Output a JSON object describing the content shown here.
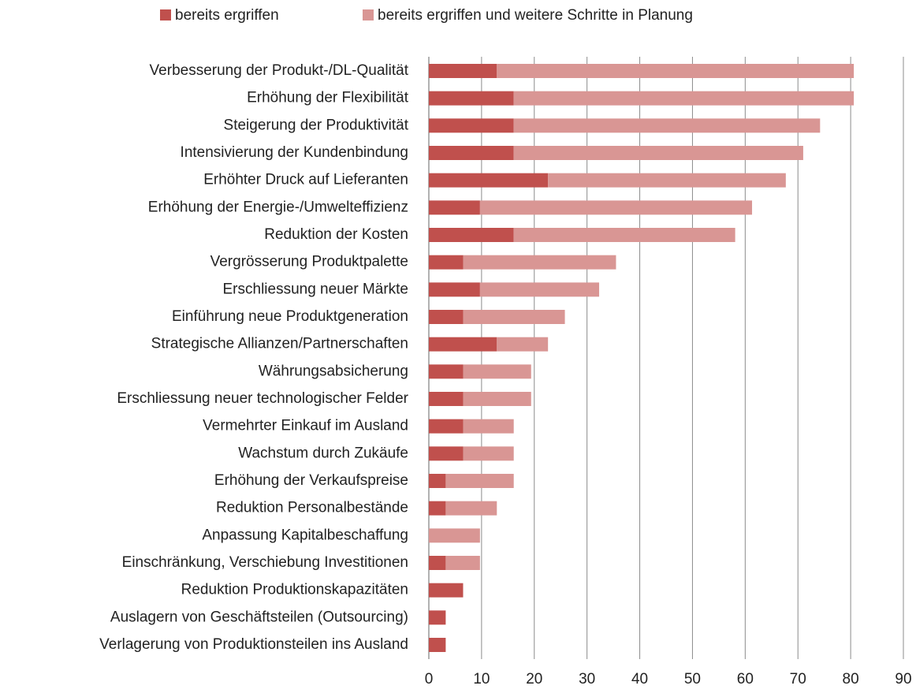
{
  "chart_data": {
    "type": "stacked-barh",
    "categories": [
      "Verbesserung der Produkt-/DL-Qualität",
      "Erhöhung der Flexibilität",
      "Steigerung der Produktivität",
      "Intensivierung der Kundenbindung",
      "Erhöhter Druck auf Lieferanten",
      "Erhöhung der Energie-/Umwelteffizienz",
      "Reduktion der Kosten",
      "Vergrösserung Produktpalette",
      "Erschliessung neuer Märkte",
      "Einführung neue Produktgeneration",
      "Strategische Allianzen/Partnerschaften",
      "Währungsabsicherung",
      "Erschliessung neuer technologischer Felder",
      "Vermehrter Einkauf im Ausland",
      "Wachstum durch Zukäufe",
      "Erhöhung der Verkaufspreise",
      "Reduktion Personalbestände",
      "Anpassung Kapitalbeschaffung",
      "Einschränkung, Verschiebung Investitionen",
      "Reduktion Produktionskapazitäten",
      "Auslagern von Geschäftsteilen (Outsourcing)",
      "Verlagerung von Produktionsteilen ins Ausland"
    ],
    "series": [
      {
        "name": "bereits ergriffen",
        "color": "#c0504d",
        "values": [
          12.9,
          16.1,
          16.1,
          16.1,
          22.6,
          9.7,
          16.1,
          6.5,
          9.7,
          6.5,
          12.9,
          6.5,
          6.5,
          6.5,
          6.5,
          3.2,
          3.2,
          0,
          3.2,
          6.5,
          3.2,
          3.2
        ]
      },
      {
        "name": "bereits ergriffen und weitere Schritte in Planung",
        "color": "#d99694",
        "values": [
          67.7,
          64.5,
          58.1,
          54.9,
          45.1,
          51.6,
          42.0,
          29.0,
          22.6,
          19.3,
          9.7,
          12.9,
          12.9,
          9.6,
          9.6,
          12.9,
          9.7,
          9.7,
          6.5,
          0,
          0,
          0
        ]
      }
    ],
    "xlim": [
      0,
      90
    ],
    "xticks": [
      0,
      10,
      20,
      30,
      40,
      50,
      60,
      70,
      80,
      90
    ],
    "grid": true,
    "legend": "top"
  }
}
